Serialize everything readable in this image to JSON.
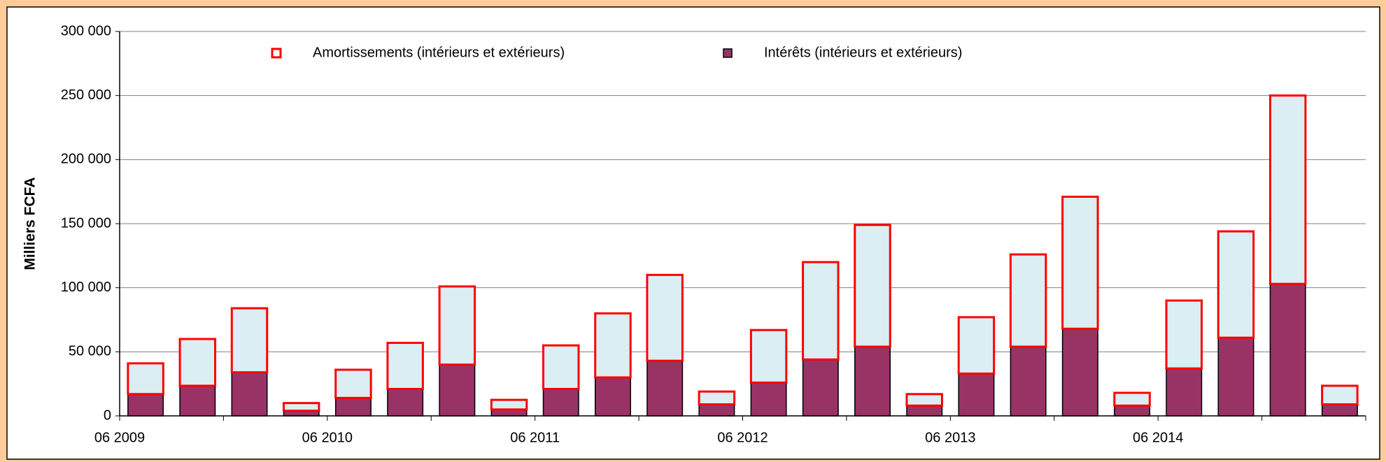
{
  "chart_data": {
    "type": "stacked_bar",
    "y_label": "Milliers FCFA",
    "categories": [
      "06 2009",
      null,
      null,
      null,
      "06 2010",
      null,
      null,
      null,
      "06 2011",
      null,
      null,
      null,
      "06 2012",
      null,
      null,
      null,
      "06 2013",
      null,
      null,
      null,
      "06 2014",
      null,
      null,
      null
    ],
    "series": [
      {
        "name": "Amortissements (intérieurs et extérieurs)",
        "color": "#daeef3",
        "edgecolor": "#ff0000",
        "values": [
          24000,
          36500,
          50000,
          6000,
          22000,
          36000,
          61000,
          7500,
          34000,
          50000,
          67000,
          10000,
          41000,
          76000,
          95000,
          9000,
          44000,
          72000,
          103000,
          10000,
          53000,
          83000,
          147000,
          14500
        ]
      },
      {
        "name": "Intérêts (intérieurs et extérieurs)",
        "color": "#993366",
        "edgecolor": "#000000",
        "values": [
          17000,
          23500,
          34000,
          4000,
          14000,
          21000,
          40000,
          5000,
          21000,
          30000,
          43000,
          9000,
          26000,
          44000,
          54000,
          8000,
          33000,
          54000,
          68000,
          8000,
          37000,
          61000,
          103000,
          9000
        ]
      }
    ],
    "ylim": [
      0,
      300000
    ],
    "yticks": [
      0,
      {
        "value": 50000,
        "label": "50 000"
      },
      {
        "value": 100000,
        "label": "100 000"
      },
      {
        "value": 150000,
        "label": "150 000"
      },
      {
        "value": 200000,
        "label": "200 000"
      },
      {
        "value": 250000,
        "label": "250 000"
      },
      {
        "value": 300000,
        "label": "300 000"
      }
    ],
    "grid": true
  }
}
